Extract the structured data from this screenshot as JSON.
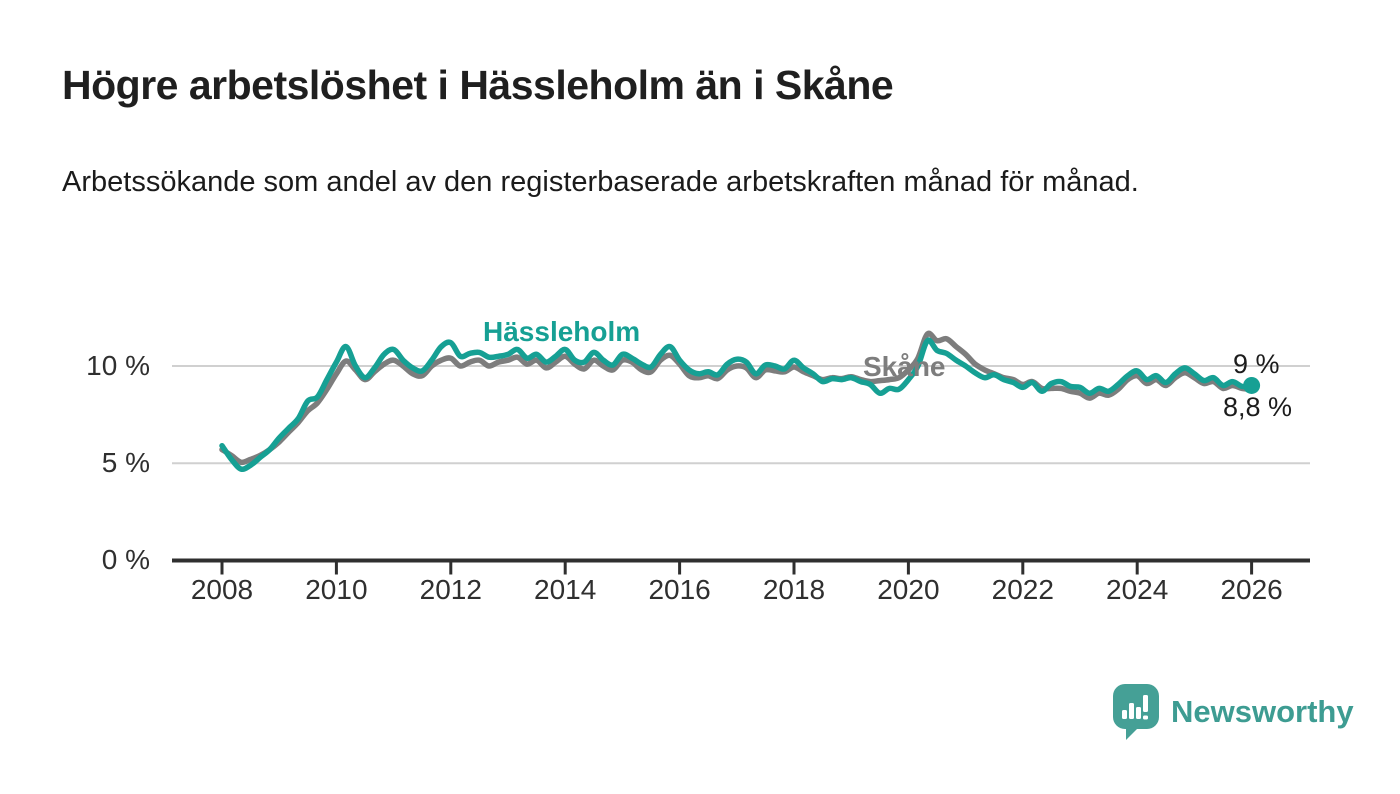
{
  "title": "Högre arbetslöshet i Hässleholm än i Skåne",
  "subtitle": "Arbetssökande som andel av den registerbaserade arbetskraften månad för månad.",
  "branding": {
    "logo_text": "Newsworthy",
    "logo_icon": "bar-chart-speech-bubble-icon",
    "brand_color": "#3d9c92"
  },
  "colors": {
    "hassleholm_line": "#16a094",
    "skane_line": "#7d7d7d",
    "axis": "#2f2f2f",
    "grid": "#d0d0d0",
    "text": "#1b1b1b"
  },
  "chart_data": {
    "type": "line",
    "title": "Högre arbetslöshet i Hässleholm än i Skåne",
    "xlabel": "",
    "ylabel": "",
    "unit": "%",
    "x_start_year": 2008,
    "points_per_year": 6,
    "x_end_year": 2026,
    "x_ticks": [
      "2008",
      "2010",
      "2012",
      "2014",
      "2016",
      "2018",
      "2020",
      "2022",
      "2024",
      "2026"
    ],
    "y_tick_labels": [
      "0 %",
      "5 %",
      "10 %"
    ],
    "y_tick_values": [
      0,
      5,
      10
    ],
    "ylim": [
      0,
      12
    ],
    "grid": "horizontal",
    "legend_position": "inline-labels",
    "series": [
      {
        "name": "Hässleholm",
        "color": "#16a094",
        "end_label": "9 %",
        "end_value": 9.0,
        "end_dot": true,
        "values": [
          5.9,
          5.2,
          4.7,
          4.9,
          5.3,
          5.7,
          6.3,
          6.8,
          7.3,
          8.2,
          8.4,
          9.3,
          10.2,
          11.0,
          10.0,
          9.4,
          9.9,
          10.6,
          10.85,
          10.3,
          9.9,
          9.75,
          10.3,
          11.0,
          11.2,
          10.5,
          10.65,
          10.7,
          10.45,
          10.5,
          10.6,
          10.85,
          10.4,
          10.6,
          10.2,
          10.5,
          10.85,
          10.3,
          10.2,
          10.7,
          10.3,
          10.05,
          10.6,
          10.4,
          10.1,
          9.95,
          10.6,
          11.0,
          10.3,
          9.8,
          9.6,
          9.7,
          9.55,
          10.1,
          10.35,
          10.2,
          9.6,
          10.05,
          10.0,
          9.85,
          10.3,
          9.9,
          9.6,
          9.2,
          9.35,
          9.3,
          9.4,
          9.2,
          9.05,
          8.6,
          8.85,
          8.8,
          9.3,
          10.0,
          11.3,
          10.8,
          10.65,
          10.3,
          10.0,
          9.65,
          9.4,
          9.55,
          9.3,
          9.15,
          8.9,
          9.15,
          8.7,
          9.1,
          9.2,
          8.95,
          8.9,
          8.6,
          8.85,
          8.7,
          9.05,
          9.5,
          9.75,
          9.3,
          9.5,
          9.15,
          9.6,
          9.9,
          9.6,
          9.25,
          9.4,
          9.0,
          9.2,
          8.95,
          9.0
        ]
      },
      {
        "name": "Skåne",
        "color": "#7d7d7d",
        "end_label": "8,8 %",
        "end_value": 8.8,
        "end_dot": false,
        "values": [
          5.7,
          5.4,
          5.05,
          5.2,
          5.4,
          5.7,
          6.1,
          6.6,
          7.1,
          7.7,
          8.1,
          8.8,
          9.6,
          10.25,
          9.8,
          9.3,
          9.7,
          10.1,
          10.3,
          10.0,
          9.6,
          9.5,
          10.0,
          10.3,
          10.4,
          10.0,
          10.2,
          10.3,
          10.0,
          10.2,
          10.3,
          10.45,
          10.1,
          10.3,
          9.9,
          10.2,
          10.5,
          10.1,
          9.85,
          10.3,
          10.0,
          9.8,
          10.3,
          10.2,
          9.8,
          9.7,
          10.3,
          10.55,
          10.1,
          9.5,
          9.4,
          9.5,
          9.35,
          9.8,
          10.0,
          9.9,
          9.4,
          9.8,
          9.75,
          9.7,
          9.95,
          9.7,
          9.5,
          9.3,
          9.4,
          9.35,
          9.45,
          9.3,
          9.2,
          9.25,
          9.3,
          9.4,
          9.8,
          10.4,
          11.65,
          11.3,
          11.4,
          11.0,
          10.6,
          10.1,
          9.8,
          9.6,
          9.4,
          9.3,
          9.05,
          9.2,
          8.85,
          8.85,
          8.85,
          8.7,
          8.6,
          8.35,
          8.6,
          8.5,
          8.8,
          9.3,
          9.5,
          9.1,
          9.3,
          9.0,
          9.4,
          9.65,
          9.4,
          9.1,
          9.2,
          8.85,
          9.0,
          8.85,
          8.8
        ]
      }
    ]
  }
}
